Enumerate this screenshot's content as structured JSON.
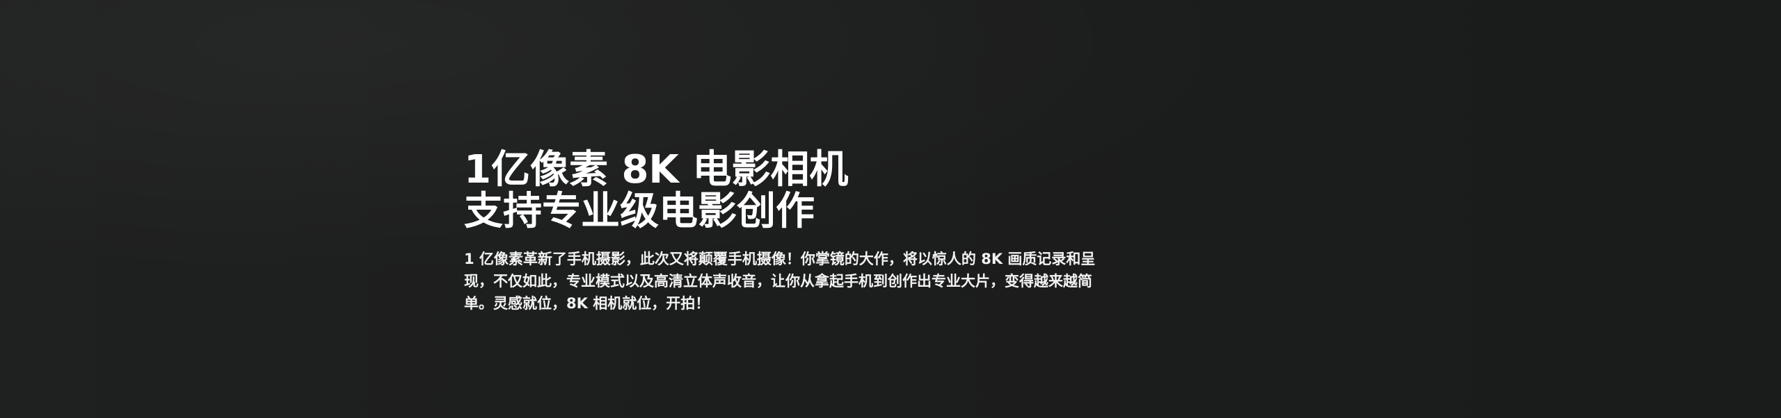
{
  "hero": {
    "headline_line1": "1亿像素 8K 电影相机",
    "headline_line2": "支持专业级电影创作",
    "description": "1 亿像素革新了手机摄影，此次又将颠覆手机摄像！你掌镜的大作，将以惊人的 8K 画质记录和呈现，不仅如此，专业模式以及高清立体声收音，让你从拿起手机到创作出专业大片，变得越来越简单。灵感就位，8K 相机就位，开拍！"
  },
  "colors": {
    "background": "#1e1f1f",
    "text": "#ffffff"
  }
}
